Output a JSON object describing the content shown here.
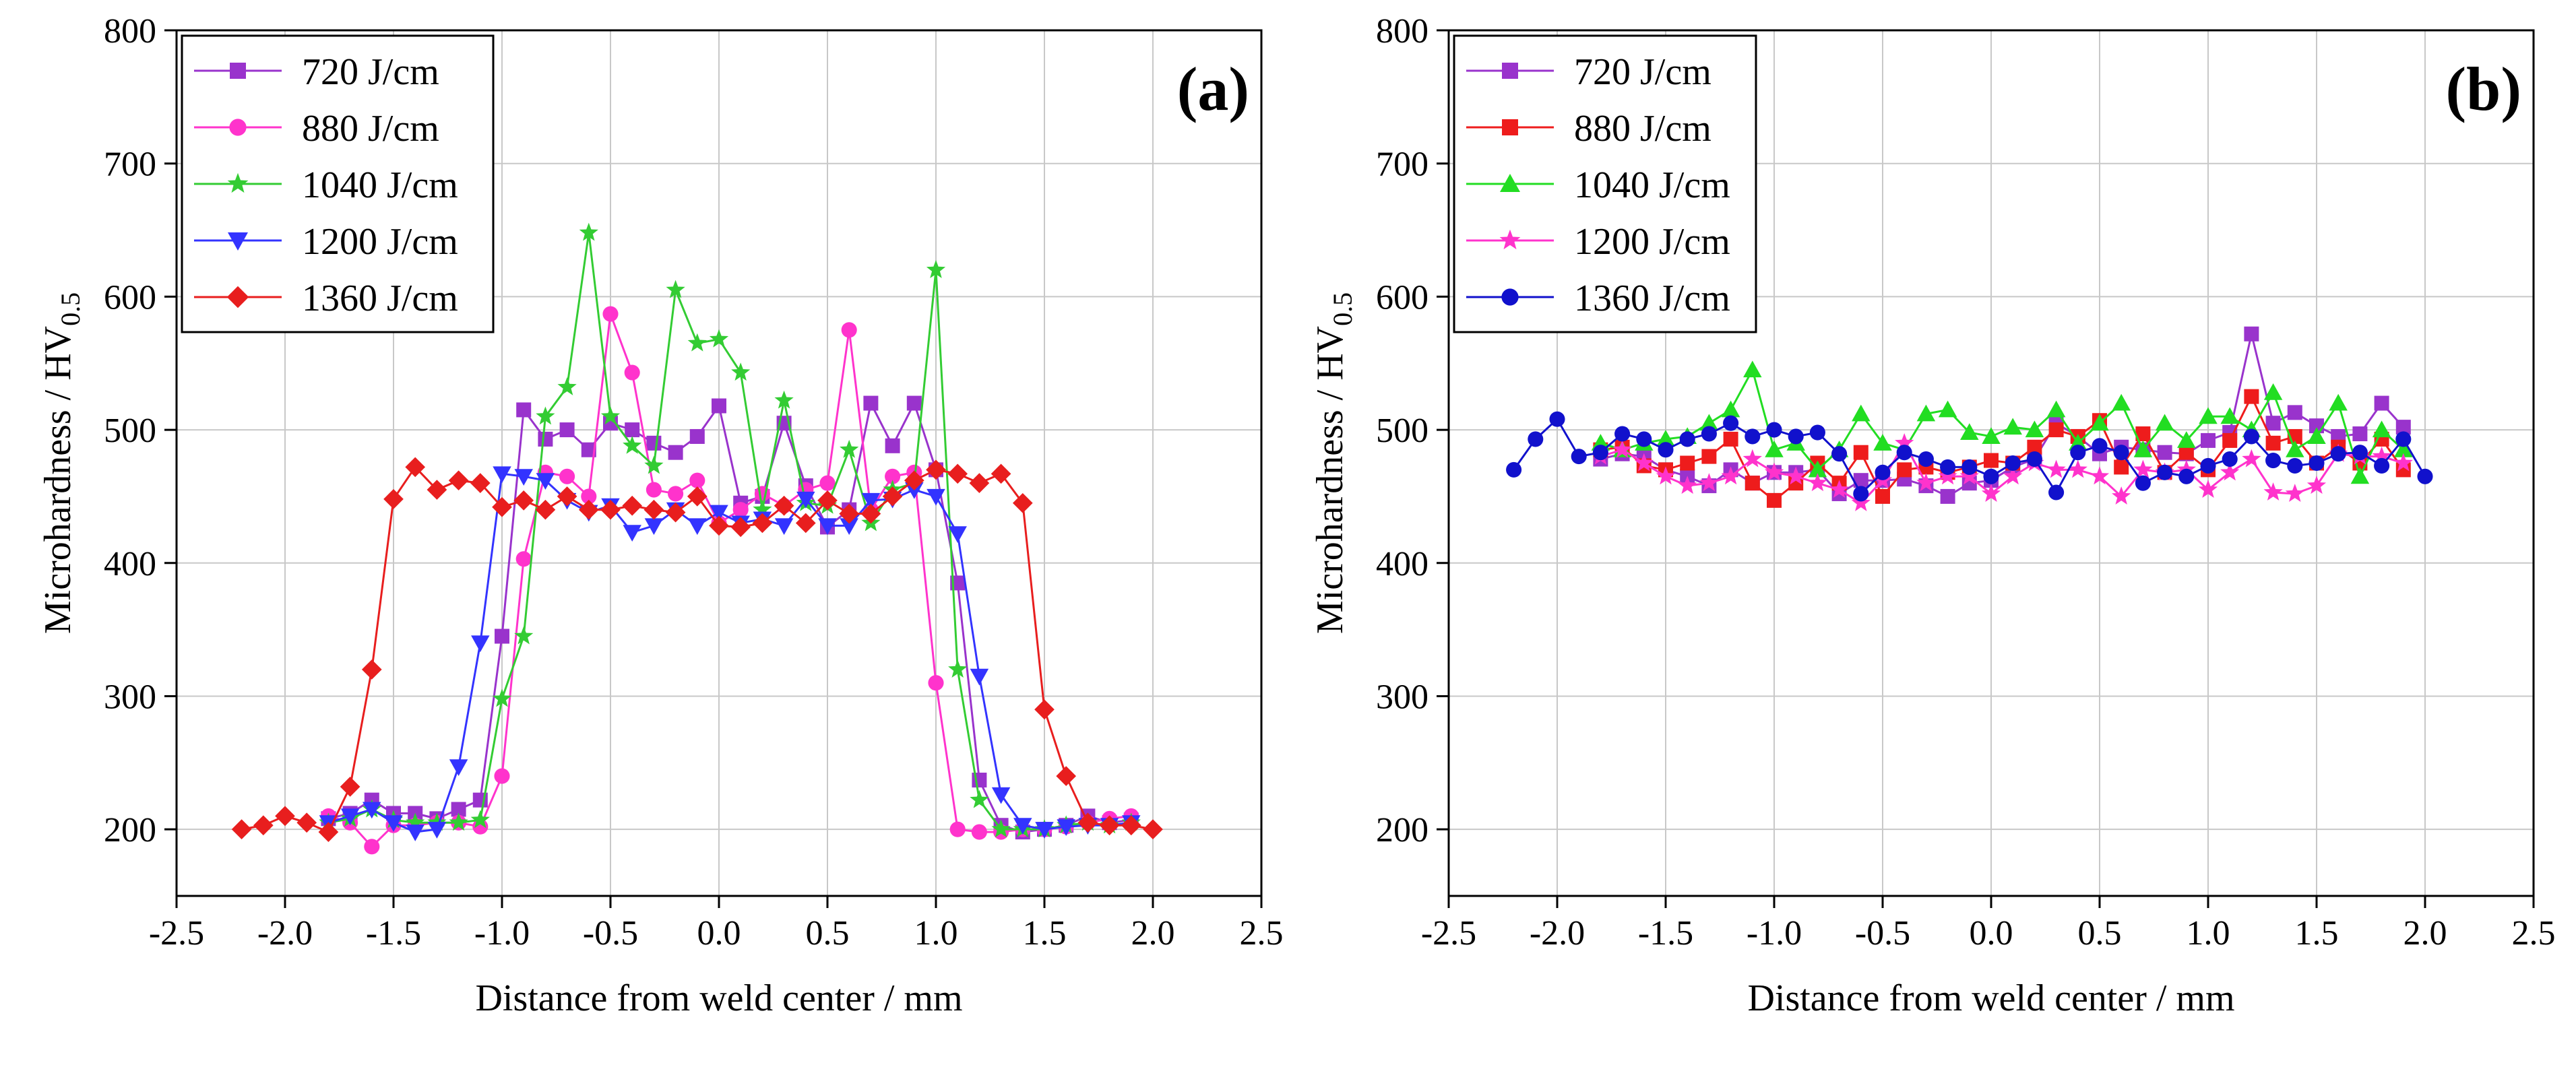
{
  "figure": {
    "panels": [
      "(a)",
      "(b)"
    ]
  },
  "chart_data": [
    {
      "type": "line",
      "title": "",
      "panel_label": "(a)",
      "xlabel": "Distance from weld center / mm",
      "ylabel": "Microhardness / HV",
      "ylabel_subscript": "0.5",
      "xlim": [
        -2.5,
        2.5
      ],
      "ylim": [
        150,
        800
      ],
      "xticks": [
        "-2.5",
        "-2.0",
        "-1.5",
        "-1.0",
        "-0.5",
        "0.0",
        "0.5",
        "1.0",
        "1.5",
        "2.0",
        "2.5"
      ],
      "yticks": [
        "200",
        "300",
        "400",
        "500",
        "600",
        "700",
        "800"
      ],
      "grid": true,
      "legend_position": "top-left",
      "series": [
        {
          "name": "720 J/cm",
          "color": "#9933CC",
          "marker": "square",
          "x": [
            -1.8,
            -1.7,
            -1.6,
            -1.5,
            -1.4,
            -1.3,
            -1.2,
            -1.1,
            -1.0,
            -0.9,
            -0.8,
            -0.7,
            -0.6,
            -0.5,
            -0.4,
            -0.3,
            -0.2,
            -0.1,
            0.0,
            0.1,
            0.2,
            0.3,
            0.4,
            0.5,
            0.6,
            0.7,
            0.8,
            0.9,
            1.0,
            1.1,
            1.2,
            1.3,
            1.4,
            1.5,
            1.6,
            1.7,
            1.8,
            1.9
          ],
          "y": [
            208,
            212,
            222,
            212,
            212,
            208,
            215,
            222,
            345,
            515,
            493,
            500,
            485,
            505,
            500,
            490,
            483,
            495,
            518,
            445,
            450,
            505,
            458,
            427,
            440,
            520,
            488,
            520,
            470,
            385,
            237,
            203,
            198,
            200,
            203,
            210,
            205,
            207
          ]
        },
        {
          "name": "880 J/cm",
          "color": "#FF33CC",
          "marker": "circle",
          "x": [
            -1.8,
            -1.7,
            -1.6,
            -1.5,
            -1.4,
            -1.3,
            -1.2,
            -1.1,
            -1.0,
            -0.9,
            -0.8,
            -0.7,
            -0.6,
            -0.5,
            -0.4,
            -0.3,
            -0.2,
            -0.1,
            0.0,
            0.1,
            0.2,
            0.3,
            0.4,
            0.5,
            0.6,
            0.7,
            0.8,
            0.9,
            1.0,
            1.1,
            1.2,
            1.3,
            1.4,
            1.5,
            1.6,
            1.7,
            1.8,
            1.9
          ],
          "y": [
            210,
            205,
            187,
            203,
            203,
            205,
            205,
            202,
            240,
            403,
            468,
            465,
            450,
            587,
            543,
            455,
            452,
            462,
            430,
            440,
            452,
            443,
            455,
            460,
            575,
            440,
            465,
            468,
            310,
            200,
            198,
            198,
            200,
            200,
            202,
            205,
            208,
            210
          ]
        },
        {
          "name": "1040 J/cm",
          "color": "#33CC33",
          "marker": "star",
          "x": [
            -1.8,
            -1.7,
            -1.6,
            -1.5,
            -1.4,
            -1.3,
            -1.2,
            -1.1,
            -1.0,
            -0.9,
            -0.8,
            -0.7,
            -0.6,
            -0.5,
            -0.4,
            -0.3,
            -0.2,
            -0.1,
            0.0,
            0.1,
            0.2,
            0.3,
            0.4,
            0.5,
            0.6,
            0.7,
            0.8,
            0.9,
            1.0,
            1.1,
            1.2,
            1.3,
            1.4,
            1.5,
            1.6,
            1.7,
            1.8,
            1.9
          ],
          "y": [
            205,
            208,
            215,
            207,
            205,
            205,
            205,
            207,
            298,
            345,
            510,
            532,
            648,
            510,
            488,
            473,
            605,
            565,
            568,
            543,
            440,
            522,
            445,
            443,
            485,
            430,
            455,
            460,
            620,
            320,
            222,
            200,
            200,
            200,
            203,
            205,
            203,
            205
          ]
        },
        {
          "name": "1200 J/cm",
          "color": "#3333FF",
          "marker": "triangle-down",
          "x": [
            -1.8,
            -1.7,
            -1.6,
            -1.5,
            -1.4,
            -1.3,
            -1.2,
            -1.1,
            -1.0,
            -0.9,
            -0.8,
            -0.7,
            -0.6,
            -0.5,
            -0.4,
            -0.3,
            -0.2,
            -0.1,
            0.0,
            0.1,
            0.2,
            0.3,
            0.4,
            0.5,
            0.6,
            0.7,
            0.8,
            0.9,
            1.0,
            1.1,
            1.2,
            1.3,
            1.4,
            1.5,
            1.6,
            1.7,
            1.8,
            1.9
          ],
          "y": [
            205,
            210,
            215,
            205,
            198,
            200,
            247,
            340,
            467,
            465,
            462,
            447,
            438,
            443,
            423,
            428,
            440,
            428,
            438,
            430,
            433,
            428,
            448,
            428,
            428,
            447,
            448,
            455,
            450,
            422,
            315,
            226,
            203,
            200,
            202,
            203,
            203,
            205
          ]
        },
        {
          "name": "1360 J/cm",
          "color": "#E81E1E",
          "marker": "diamond",
          "x": [
            -2.2,
            -2.1,
            -2.0,
            -1.9,
            -1.8,
            -1.7,
            -1.6,
            -1.5,
            -1.4,
            -1.3,
            -1.2,
            -1.1,
            -1.0,
            -0.9,
            -0.8,
            -0.7,
            -0.6,
            -0.5,
            -0.4,
            -0.3,
            -0.2,
            -0.1,
            0.0,
            0.1,
            0.2,
            0.3,
            0.4,
            0.5,
            0.6,
            0.7,
            0.8,
            0.9,
            1.0,
            1.1,
            1.2,
            1.3,
            1.4,
            1.5,
            1.6,
            1.7,
            1.8,
            1.9,
            2.0
          ],
          "y": [
            200,
            203,
            210,
            205,
            198,
            232,
            320,
            448,
            472,
            455,
            462,
            460,
            442,
            447,
            440,
            450,
            440,
            440,
            443,
            440,
            438,
            450,
            428,
            427,
            430,
            443,
            430,
            447,
            437,
            437,
            450,
            462,
            470,
            467,
            460,
            467,
            445,
            290,
            240,
            205,
            203,
            203,
            200
          ]
        }
      ]
    },
    {
      "type": "line",
      "title": "",
      "panel_label": "(b)",
      "xlabel": "Distance from weld center / mm",
      "ylabel": "Microhardness / HV",
      "ylabel_subscript": "0.5",
      "xlim": [
        -2.5,
        2.5
      ],
      "ylim": [
        150,
        800
      ],
      "xticks": [
        "-2.5",
        "-2.0",
        "-1.5",
        "-1.0",
        "-0.5",
        "0.0",
        "0.5",
        "1.0",
        "1.5",
        "2.0",
        "2.5"
      ],
      "yticks": [
        "200",
        "300",
        "400",
        "500",
        "600",
        "700",
        "800"
      ],
      "grid": true,
      "legend_position": "top-left",
      "series": [
        {
          "name": "720 J/cm",
          "color": "#9933CC",
          "marker": "square",
          "x": [
            -1.8,
            -1.7,
            -1.6,
            -1.5,
            -1.4,
            -1.3,
            -1.2,
            -1.1,
            -1.0,
            -0.9,
            -0.8,
            -0.7,
            -0.6,
            -0.5,
            -0.4,
            -0.3,
            -0.2,
            -0.1,
            0.0,
            0.1,
            0.2,
            0.3,
            0.4,
            0.5,
            0.6,
            0.7,
            0.8,
            0.9,
            1.0,
            1.1,
            1.2,
            1.3,
            1.4,
            1.5,
            1.6,
            1.7,
            1.8,
            1.9
          ],
          "y": [
            478,
            482,
            480,
            470,
            465,
            458,
            470,
            460,
            468,
            468,
            470,
            452,
            462,
            462,
            463,
            458,
            450,
            460,
            462,
            472,
            478,
            505,
            495,
            482,
            487,
            485,
            483,
            482,
            492,
            498,
            572,
            505,
            513,
            503,
            495,
            497,
            520,
            502
          ]
        },
        {
          "name": "880 J/cm",
          "color": "#EE1C1C",
          "marker": "square",
          "x": [
            -1.8,
            -1.7,
            -1.6,
            -1.5,
            -1.4,
            -1.3,
            -1.2,
            -1.1,
            -1.0,
            -0.9,
            -0.8,
            -0.7,
            -0.6,
            -0.5,
            -0.4,
            -0.3,
            -0.2,
            -0.1,
            0.0,
            0.1,
            0.2,
            0.3,
            0.4,
            0.5,
            0.6,
            0.7,
            0.8,
            0.9,
            1.0,
            1.1,
            1.2,
            1.3,
            1.4,
            1.5,
            1.6,
            1.7,
            1.8,
            1.9
          ],
          "y": [
            485,
            487,
            473,
            470,
            475,
            480,
            493,
            460,
            447,
            460,
            475,
            460,
            483,
            450,
            470,
            472,
            468,
            472,
            477,
            475,
            487,
            500,
            495,
            507,
            472,
            497,
            468,
            483,
            470,
            492,
            525,
            490,
            495,
            475,
            487,
            475,
            493,
            470
          ]
        },
        {
          "name": "1040 J/cm",
          "color": "#22DD22",
          "marker": "triangle-up",
          "x": [
            -1.8,
            -1.7,
            -1.6,
            -1.5,
            -1.4,
            -1.3,
            -1.2,
            -1.1,
            -1.0,
            -0.9,
            -0.8,
            -0.7,
            -0.6,
            -0.5,
            -0.4,
            -0.3,
            -0.2,
            -0.1,
            0.0,
            0.1,
            0.2,
            0.3,
            0.4,
            0.5,
            0.6,
            0.7,
            0.8,
            0.9,
            1.0,
            1.1,
            1.2,
            1.3,
            1.4,
            1.5,
            1.6,
            1.7,
            1.8,
            1.9
          ],
          "y": [
            490,
            485,
            490,
            493,
            495,
            505,
            515,
            545,
            485,
            490,
            470,
            485,
            512,
            490,
            485,
            512,
            515,
            498,
            495,
            502,
            500,
            515,
            490,
            505,
            520,
            485,
            505,
            492,
            510,
            510,
            500,
            528,
            485,
            495,
            520,
            465,
            500,
            485
          ]
        },
        {
          "name": "1200 J/cm",
          "color": "#FF33CC",
          "marker": "star",
          "x": [
            -1.8,
            -1.7,
            -1.6,
            -1.5,
            -1.4,
            -1.3,
            -1.2,
            -1.1,
            -1.0,
            -0.9,
            -0.8,
            -0.7,
            -0.6,
            -0.5,
            -0.4,
            -0.3,
            -0.2,
            -0.1,
            0.0,
            0.1,
            0.2,
            0.3,
            0.4,
            0.5,
            0.6,
            0.7,
            0.8,
            0.9,
            1.0,
            1.1,
            1.2,
            1.3,
            1.4,
            1.5,
            1.6,
            1.7,
            1.8,
            1.9
          ],
          "y": [
            480,
            485,
            475,
            465,
            458,
            460,
            465,
            478,
            468,
            465,
            460,
            455,
            445,
            462,
            490,
            460,
            465,
            465,
            452,
            465,
            475,
            470,
            470,
            465,
            450,
            470,
            468,
            470,
            455,
            468,
            478,
            453,
            452,
            458,
            482,
            480,
            480,
            475
          ]
        },
        {
          "name": "1360 J/cm",
          "color": "#1111CC",
          "marker": "circle",
          "x": [
            -2.2,
            -2.1,
            -2.0,
            -1.9,
            -1.8,
            -1.7,
            -1.6,
            -1.5,
            -1.4,
            -1.3,
            -1.2,
            -1.1,
            -1.0,
            -0.9,
            -0.8,
            -0.7,
            -0.6,
            -0.5,
            -0.4,
            -0.3,
            -0.2,
            -0.1,
            0.0,
            0.1,
            0.2,
            0.3,
            0.4,
            0.5,
            0.6,
            0.7,
            0.8,
            0.9,
            1.0,
            1.1,
            1.2,
            1.3,
            1.4,
            1.5,
            1.6,
            1.7,
            1.8,
            1.9,
            2.0
          ],
          "y": [
            470,
            493,
            508,
            480,
            483,
            497,
            493,
            485,
            493,
            497,
            505,
            495,
            500,
            495,
            498,
            482,
            452,
            468,
            483,
            478,
            472,
            472,
            465,
            475,
            478,
            453,
            483,
            488,
            483,
            460,
            468,
            465,
            473,
            478,
            495,
            477,
            473,
            475,
            482,
            483,
            473,
            493,
            465
          ]
        }
      ]
    }
  ]
}
